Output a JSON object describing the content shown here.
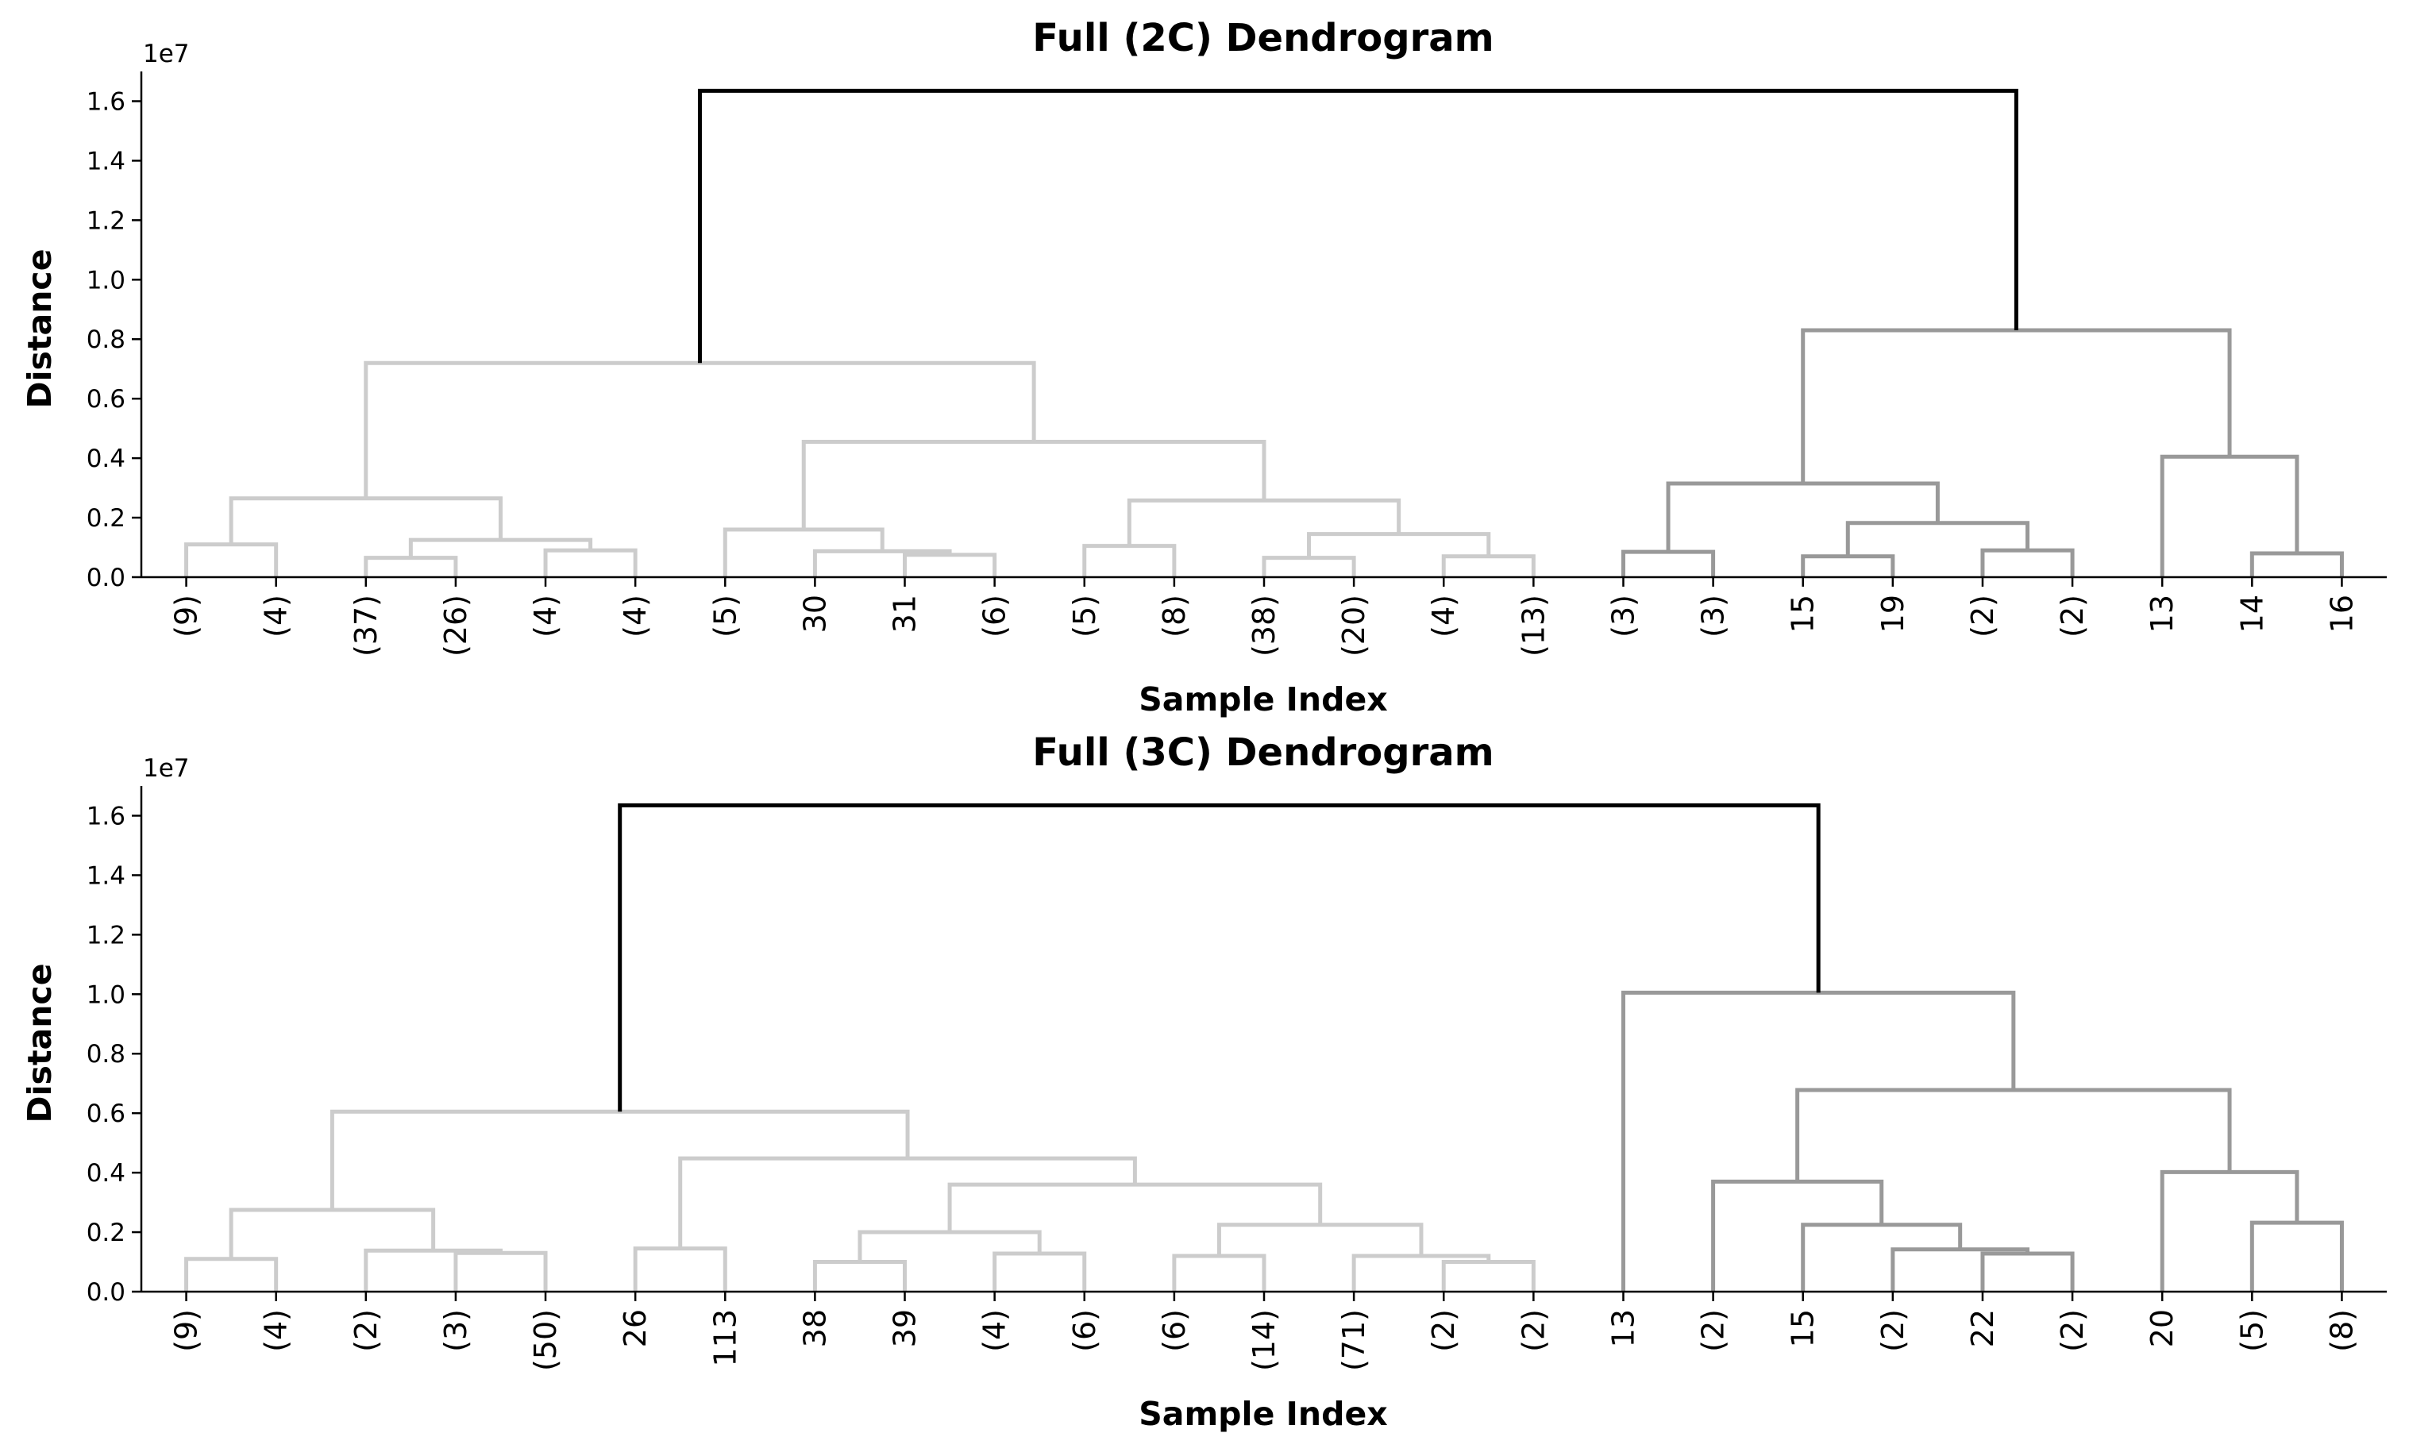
{
  "colors": {
    "root": "#000000",
    "cluster_a": "#cccccc",
    "cluster_b": "#999999"
  },
  "chart_data": [
    {
      "type": "dendrogram",
      "title": "Full (2C) Dendrogram",
      "xlabel": "Sample Index",
      "ylabel": "Distance",
      "y_offset_label": "1e7",
      "ylim": [
        0,
        1.7
      ],
      "yticks": [
        "0.0",
        "0.2",
        "0.4",
        "0.6",
        "0.8",
        "1.0",
        "1.2",
        "1.4",
        "1.6"
      ],
      "grid": false,
      "leaves": [
        "(9)",
        "(4)",
        "(37)",
        "(26)",
        "(4)",
        "(4)",
        "(5)",
        "30",
        "31",
        "(6)",
        "(5)",
        "(8)",
        "(38)",
        "(20)",
        "(4)",
        "(13)",
        "(3)",
        "(3)",
        "15",
        "19",
        "(2)",
        "(2)",
        "13",
        "14",
        "16"
      ],
      "links": [
        {
          "c": [
            0.5,
            1.5
          ],
          "h": [
            0,
            0
          ],
          "d": 0.11,
          "g": "cluster_a"
        },
        {
          "c": [
            2.5,
            3.5
          ],
          "h": [
            0,
            0
          ],
          "d": 0.065,
          "g": "cluster_a"
        },
        {
          "c": [
            4.5,
            5.5
          ],
          "h": [
            0,
            0
          ],
          "d": 0.09,
          "g": "cluster_a"
        },
        {
          "c": [
            3.0,
            5.0
          ],
          "h": [
            0.065,
            0.09
          ],
          "d": 0.125,
          "g": "cluster_a"
        },
        {
          "c": [
            1.0,
            4.0
          ],
          "h": [
            0.11,
            0.125
          ],
          "d": 0.265,
          "g": "cluster_a"
        },
        {
          "c": [
            8.5,
            9.5
          ],
          "h": [
            0,
            0
          ],
          "d": 0.075,
          "g": "cluster_a"
        },
        {
          "c": [
            7.5,
            9.0
          ],
          "h": [
            0,
            0.075
          ],
          "d": 0.087,
          "g": "cluster_a"
        },
        {
          "c": [
            6.5,
            8.25
          ],
          "h": [
            0,
            0.087
          ],
          "d": 0.16,
          "g": "cluster_a"
        },
        {
          "c": [
            10.5,
            11.5
          ],
          "h": [
            0,
            0
          ],
          "d": 0.105,
          "g": "cluster_a"
        },
        {
          "c": [
            12.5,
            13.5
          ],
          "h": [
            0,
            0
          ],
          "d": 0.065,
          "g": "cluster_a"
        },
        {
          "c": [
            14.5,
            15.5
          ],
          "h": [
            0,
            0
          ],
          "d": 0.07,
          "g": "cluster_a"
        },
        {
          "c": [
            13.0,
            15.0
          ],
          "h": [
            0.065,
            0.07
          ],
          "d": 0.145,
          "g": "cluster_a"
        },
        {
          "c": [
            11.0,
            14.0
          ],
          "h": [
            0.105,
            0.145
          ],
          "d": 0.258,
          "g": "cluster_a"
        },
        {
          "c": [
            7.375,
            12.5
          ],
          "h": [
            0.16,
            0.258
          ],
          "d": 0.455,
          "g": "cluster_a"
        },
        {
          "c": [
            2.5,
            9.9375
          ],
          "h": [
            0.265,
            0.455
          ],
          "d": 0.72,
          "g": "cluster_a"
        },
        {
          "c": [
            16.5,
            17.5
          ],
          "h": [
            0,
            0
          ],
          "d": 0.085,
          "g": "cluster_b"
        },
        {
          "c": [
            18.5,
            19.5
          ],
          "h": [
            0,
            0
          ],
          "d": 0.07,
          "g": "cluster_b"
        },
        {
          "c": [
            20.5,
            21.5
          ],
          "h": [
            0,
            0
          ],
          "d": 0.09,
          "g": "cluster_b"
        },
        {
          "c": [
            19.0,
            21.0
          ],
          "h": [
            0.07,
            0.09
          ],
          "d": 0.182,
          "g": "cluster_b"
        },
        {
          "c": [
            17.0,
            20.0
          ],
          "h": [
            0.085,
            0.182
          ],
          "d": 0.315,
          "g": "cluster_b"
        },
        {
          "c": [
            23.5,
            24.5
          ],
          "h": [
            0,
            0
          ],
          "d": 0.08,
          "g": "cluster_b"
        },
        {
          "c": [
            22.5,
            24.0
          ],
          "h": [
            0,
            0.08
          ],
          "d": 0.405,
          "g": "cluster_b"
        },
        {
          "c": [
            18.5,
            23.25
          ],
          "h": [
            0.315,
            0.405
          ],
          "d": 0.83,
          "g": "cluster_b"
        },
        {
          "c": [
            6.21875,
            20.875
          ],
          "h": [
            0.72,
            0.83
          ],
          "d": 1.635,
          "g": "root"
        }
      ]
    },
    {
      "type": "dendrogram",
      "title": "Full (3C) Dendrogram",
      "xlabel": "Sample Index",
      "ylabel": "Distance",
      "y_offset_label": "1e7",
      "ylim": [
        0,
        1.7
      ],
      "yticks": [
        "0.0",
        "0.2",
        "0.4",
        "0.6",
        "0.8",
        "1.0",
        "1.2",
        "1.4",
        "1.6"
      ],
      "grid": false,
      "leaves": [
        "(9)",
        "(4)",
        "(2)",
        "(3)",
        "(50)",
        "26",
        "113",
        "38",
        "39",
        "(4)",
        "(6)",
        "(6)",
        "(14)",
        "(71)",
        "(2)",
        "(2)",
        "13",
        "(2)",
        "15",
        "(2)",
        "22",
        "(2)",
        "20",
        "(5)",
        "(8)"
      ],
      "links": [
        {
          "c": [
            0.5,
            1.5
          ],
          "h": [
            0,
            0
          ],
          "d": 0.11,
          "g": "cluster_a"
        },
        {
          "c": [
            3.5,
            4.5
          ],
          "h": [
            0,
            0
          ],
          "d": 0.13,
          "g": "cluster_a"
        },
        {
          "c": [
            2.5,
            4.0
          ],
          "h": [
            0,
            0.13
          ],
          "d": 0.138,
          "g": "cluster_a"
        },
        {
          "c": [
            1.0,
            3.25
          ],
          "h": [
            0.11,
            0.138
          ],
          "d": 0.275,
          "g": "cluster_a"
        },
        {
          "c": [
            5.5,
            6.5
          ],
          "h": [
            0,
            0
          ],
          "d": 0.145,
          "g": "cluster_a"
        },
        {
          "c": [
            7.5,
            8.5
          ],
          "h": [
            0,
            0
          ],
          "d": 0.1,
          "g": "cluster_a"
        },
        {
          "c": [
            9.5,
            10.5
          ],
          "h": [
            0,
            0
          ],
          "d": 0.128,
          "g": "cluster_a"
        },
        {
          "c": [
            8.0,
            10.0
          ],
          "h": [
            0.1,
            0.128
          ],
          "d": 0.2,
          "g": "cluster_a"
        },
        {
          "c": [
            11.5,
            12.5
          ],
          "h": [
            0,
            0
          ],
          "d": 0.12,
          "g": "cluster_a"
        },
        {
          "c": [
            14.5,
            15.5
          ],
          "h": [
            0,
            0
          ],
          "d": 0.1,
          "g": "cluster_a"
        },
        {
          "c": [
            13.5,
            15.0
          ],
          "h": [
            0,
            0.1
          ],
          "d": 0.12,
          "g": "cluster_a"
        },
        {
          "c": [
            12.0,
            14.25
          ],
          "h": [
            0.12,
            0.12
          ],
          "d": 0.225,
          "g": "cluster_a"
        },
        {
          "c": [
            9.0,
            13.125
          ],
          "h": [
            0.2,
            0.225
          ],
          "d": 0.36,
          "g": "cluster_a"
        },
        {
          "c": [
            6.0,
            11.0625
          ],
          "h": [
            0.145,
            0.36
          ],
          "d": 0.448,
          "g": "cluster_a"
        },
        {
          "c": [
            2.125,
            8.53125
          ],
          "h": [
            0.275,
            0.448
          ],
          "d": 0.605,
          "g": "cluster_a"
        },
        {
          "c": [
            20.5,
            21.5
          ],
          "h": [
            0,
            0
          ],
          "d": 0.128,
          "g": "cluster_b"
        },
        {
          "c": [
            19.5,
            21.0
          ],
          "h": [
            0,
            0.128
          ],
          "d": 0.142,
          "g": "cluster_b"
        },
        {
          "c": [
            18.5,
            20.25
          ],
          "h": [
            0,
            0.142
          ],
          "d": 0.225,
          "g": "cluster_b"
        },
        {
          "c": [
            17.5,
            19.375
          ],
          "h": [
            0,
            0.225
          ],
          "d": 0.37,
          "g": "cluster_b"
        },
        {
          "c": [
            23.5,
            24.5
          ],
          "h": [
            0,
            0
          ],
          "d": 0.232,
          "g": "cluster_b"
        },
        {
          "c": [
            22.5,
            24.0
          ],
          "h": [
            0,
            0.232
          ],
          "d": 0.402,
          "g": "cluster_b"
        },
        {
          "c": [
            18.4375,
            23.25
          ],
          "h": [
            0.37,
            0.402
          ],
          "d": 0.678,
          "g": "cluster_b"
        },
        {
          "c": [
            16.5,
            20.84375
          ],
          "h": [
            0,
            0.678
          ],
          "d": 1.005,
          "g": "cluster_b"
        },
        {
          "c": [
            5.328125,
            18.671875
          ],
          "h": [
            0.605,
            1.005
          ],
          "d": 1.635,
          "g": "root"
        }
      ]
    }
  ]
}
